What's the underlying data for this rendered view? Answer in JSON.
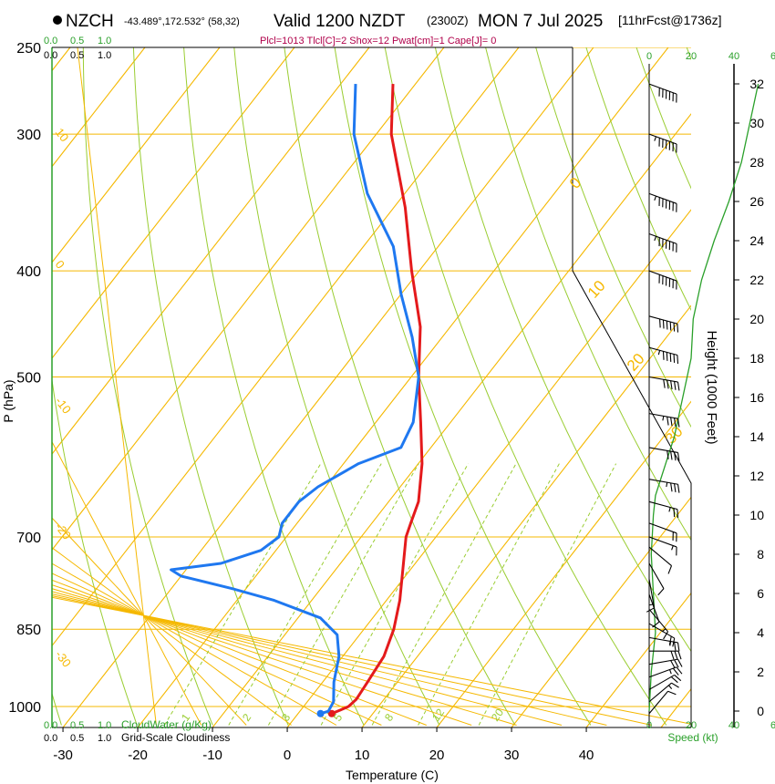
{
  "header": {
    "station": "NZCH",
    "coords": "-43.489°,172.532° (58,32)",
    "valid": "Valid 1200 NZDT",
    "zulu": "(2300Z)",
    "date": "MON 7 Jul 2025",
    "fcst": "[11hrFcst@1736z]",
    "indices": "Plcl=1013 Tlcl[C]=2 Shox=12 Pwat[cm]=1 Cape[J]= 0"
  },
  "colors": {
    "temperature": "#e41a1c",
    "dewpoint": "#1f78f0",
    "isotherm": "#f5b800",
    "dry_adiabat": "#9acd32",
    "mixing_ratio": "#9acd32",
    "height": "#2aa02a",
    "cloud": "#2aa02a"
  },
  "chart_data": {
    "type": "skew-t",
    "title": "NZCH Valid 1200 NZDT (2300Z) MON 7 Jul 2025",
    "xlabel": "Temperature (C)",
    "ylabel": "P (hPa)",
    "y2label": "Height (1000 Feet)",
    "speed_label": "Speed (kt)",
    "xlim": [
      -33,
      45
    ],
    "ylim": [
      1035,
      250
    ],
    "x_ticks": [
      "-30",
      "-20",
      "-10",
      "0",
      "10",
      "20",
      "30",
      "40"
    ],
    "x_tick_values": [
      -30,
      -20,
      -10,
      0,
      10,
      20,
      30,
      40
    ],
    "p_ticks": [
      "250",
      "300",
      "400",
      "500",
      "700",
      "850",
      "1000"
    ],
    "p_tick_values": [
      250,
      300,
      400,
      500,
      700,
      850,
      1000
    ],
    "height_ticks": [
      "0",
      "2",
      "4",
      "6",
      "8",
      "10",
      "12",
      "14",
      "16",
      "18",
      "20",
      "22",
      "24",
      "26",
      "28",
      "30",
      "32"
    ],
    "height_tick_values": [
      0,
      2,
      4,
      6,
      8,
      10,
      12,
      14,
      16,
      18,
      20,
      22,
      24,
      26,
      28,
      30,
      32
    ],
    "isotherm_labels": [
      "10",
      "0",
      "-10",
      "-20",
      "-30"
    ],
    "isotherm_label_values": [
      10,
      0,
      -10,
      -20,
      -30
    ],
    "isotherm_labels_right": [
      "0",
      "10",
      "20",
      "30"
    ],
    "isotherm_label_right_values": [
      0,
      10,
      20,
      30
    ],
    "mixing_ratio_labels": [
      "1",
      "2",
      "3",
      "5",
      "8",
      "12",
      "20"
    ],
    "mixing_ratio_values": [
      1,
      2,
      3,
      5,
      8,
      12,
      20
    ],
    "cloud_water_label": "CloudWater (g/Kg)",
    "cloudiness_label": "Grid-Scale Cloudiness",
    "cloud_scale_ticks": [
      "0.0",
      "0.5",
      "1.0"
    ],
    "speed_ticks": [
      "0",
      "20",
      "40",
      "6"
    ],
    "series": [
      {
        "name": "Temperature",
        "pressure": [
          1015,
          1008,
          1000,
          985,
          950,
          900,
          850,
          800,
          750,
          700,
          680,
          650,
          600,
          550,
          500,
          450,
          400,
          350,
          300,
          270
        ],
        "values": [
          4.5,
          5.2,
          6.0,
          6.3,
          6.0,
          5.5,
          4.0,
          1.8,
          -1.0,
          -4.0,
          -4.8,
          -6.0,
          -9.5,
          -14.0,
          -19.0,
          -24.0,
          -31.0,
          -38.5,
          -48.0,
          -53.0
        ]
      },
      {
        "name": "Dewpoint",
        "pressure": [
          1015,
          1010,
          990,
          950,
          900,
          860,
          830,
          800,
          780,
          760,
          750,
          740,
          720,
          700,
          680,
          650,
          630,
          600,
          580,
          550,
          500,
          460,
          420,
          380,
          340,
          300,
          270
        ],
        "values": [
          3.0,
          3.8,
          3.5,
          1.5,
          -0.5,
          -3.0,
          -7.0,
          -15.0,
          -22.0,
          -30.0,
          -32.0,
          -26.0,
          -22.0,
          -21.0,
          -22.0,
          -22.0,
          -21.0,
          -18.0,
          -14.0,
          -15.0,
          -19.0,
          -24.0,
          -30.0,
          -36.0,
          -45.0,
          -53.0,
          -58.0
        ]
      },
      {
        "name": "Height",
        "height_kft": [
          0,
          2,
          4,
          6,
          8,
          10,
          11,
          12,
          14,
          16,
          18,
          20,
          22,
          24,
          26,
          28,
          30,
          32
        ],
        "values": [
          0,
          1,
          3,
          2,
          1,
          2,
          3,
          6,
          12,
          16,
          20,
          21,
          25,
          31,
          38,
          44,
          48,
          52
        ]
      }
    ],
    "wind_barbs": {
      "pressure": [
        1015,
        990,
        965,
        940,
        915,
        890,
        865,
        840,
        815,
        790,
        765,
        740,
        715,
        700,
        680,
        650,
        620,
        580,
        540,
        500,
        470,
        440,
        400,
        370,
        340,
        300,
        270
      ],
      "speed_kt": [
        10,
        15,
        20,
        25,
        30,
        30,
        25,
        20,
        15,
        10,
        15,
        10,
        10,
        15,
        20,
        25,
        35,
        40,
        45,
        50,
        55,
        60,
        60,
        65,
        65,
        70,
        60
      ],
      "direction_deg": [
        220,
        230,
        240,
        250,
        260,
        270,
        280,
        300,
        320,
        340,
        350,
        330,
        310,
        290,
        290,
        285,
        280,
        280,
        280,
        280,
        285,
        285,
        290,
        290,
        290,
        290,
        290
      ]
    }
  }
}
